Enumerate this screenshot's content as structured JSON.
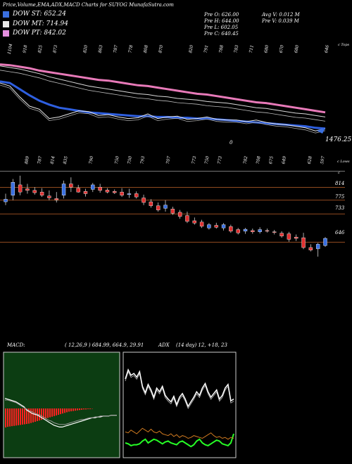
{
  "header": {
    "title": "Price,Volume,EMA,ADX,MACD Charts for SUYOG MunafaSutra.com",
    "dow_items": [
      {
        "label": "DOW ST: 652.24",
        "color": "#3a6fe0"
      },
      {
        "label": "DOW MT: 714.94",
        "color": "#e8e8e8"
      },
      {
        "label": "DOW PT: 842.02",
        "color": "#e58fe0"
      }
    ],
    "stats_col1": [
      "Pre   O: 626.00",
      "Pre   H: 644.00",
      "Pre   L: 602.05",
      "Pre   C: 640.45"
    ],
    "stats_col2": [
      "Avg V: 0.012  M",
      "Pre    V: 0.039  M"
    ]
  },
  "colors": {
    "ema_pt": "#e87ab9",
    "ema_st": "#2e5fe0",
    "up_candle": "#3a6fe0",
    "down_candle": "#e03030",
    "grid": "#c0622a",
    "macd_bars": "#ff2020",
    "macd_bg": "#0c3d12",
    "adx_plus": "#26ff26",
    "adx_minus": "#d07a20"
  },
  "chart_data": [
    {
      "type": "line",
      "name": "EMA panel",
      "top_labels": [
        "1104",
        "918",
        "825",
        "873",
        "",
        "820",
        "863",
        "787",
        "778",
        "808",
        "870",
        "",
        "820",
        "791",
        "788",
        "783",
        "711",
        "680",
        "670",
        "680",
        "",
        "646"
      ],
      "bottom_labels": [
        "889",
        "787",
        "814",
        "835",
        "",
        "790",
        "",
        "750",
        "750",
        "793",
        "",
        "707",
        "",
        "773",
        "750",
        "773",
        "",
        "782",
        "708",
        "675",
        "649",
        "",
        "628",
        "597"
      ],
      "right_label": "c Tops",
      "right_label_bottom": "c Lows",
      "price_label": "1476.25",
      "zero_label": "0",
      "series": [
        {
          "name": "DOW PT",
          "values": [
            94,
            93,
            91,
            89,
            86,
            84,
            82,
            80,
            78,
            76,
            74,
            73,
            71,
            69,
            67,
            66,
            64,
            62,
            60,
            58,
            56,
            55,
            53,
            51,
            49,
            47,
            45,
            44,
            42,
            40,
            38,
            36,
            34,
            32
          ]
        },
        {
          "name": "DOW MT",
          "values": [
            92,
            90,
            88,
            85,
            82,
            78,
            75,
            72,
            69,
            66,
            64,
            62,
            60,
            58,
            56,
            55,
            53,
            52,
            50,
            49,
            48,
            46,
            45,
            44,
            42,
            40,
            38,
            37,
            35,
            33,
            31,
            30,
            28,
            26
          ]
        },
        {
          "name": "DOW ST",
          "values": [
            72,
            70,
            62,
            54,
            47,
            42,
            38,
            36,
            34,
            32,
            31,
            30,
            29,
            28,
            27,
            27,
            26,
            26,
            25,
            25,
            24,
            24,
            23,
            22,
            21,
            20,
            19,
            18,
            17,
            16,
            15,
            14,
            12,
            11
          ]
        },
        {
          "name": "Price",
          "values": [
            70,
            66,
            52,
            40,
            36,
            24,
            26,
            30,
            34,
            33,
            28,
            29,
            26,
            24,
            25,
            30,
            24,
            26,
            27,
            23,
            24,
            26,
            23,
            22,
            22,
            20,
            22,
            19,
            17,
            16,
            14,
            12,
            8,
            11
          ]
        }
      ]
    },
    {
      "type": "bar",
      "name": "Candles",
      "ylabels": [
        "814",
        "775",
        "733",
        "646"
      ],
      "ylabel_top": "c",
      "candles": [
        {
          "o": 770,
          "h": 795,
          "l": 760,
          "c": 778
        },
        {
          "o": 790,
          "h": 840,
          "l": 775,
          "c": 830
        },
        {
          "o": 822,
          "h": 850,
          "l": 790,
          "c": 800
        },
        {
          "o": 810,
          "h": 825,
          "l": 795,
          "c": 805
        },
        {
          "o": 805,
          "h": 815,
          "l": 792,
          "c": 798
        },
        {
          "o": 800,
          "h": 812,
          "l": 785,
          "c": 790
        },
        {
          "o": 788,
          "h": 805,
          "l": 775,
          "c": 782
        },
        {
          "o": 780,
          "h": 800,
          "l": 768,
          "c": 776
        },
        {
          "o": 790,
          "h": 835,
          "l": 780,
          "c": 825
        },
        {
          "o": 825,
          "h": 845,
          "l": 800,
          "c": 815
        },
        {
          "o": 812,
          "h": 822,
          "l": 798,
          "c": 800
        },
        {
          "o": 802,
          "h": 810,
          "l": 786,
          "c": 795
        },
        {
          "o": 808,
          "h": 828,
          "l": 800,
          "c": 822
        },
        {
          "o": 815,
          "h": 825,
          "l": 798,
          "c": 805
        },
        {
          "o": 806,
          "h": 812,
          "l": 796,
          "c": 800
        },
        {
          "o": 802,
          "h": 808,
          "l": 794,
          "c": 798
        },
        {
          "o": 800,
          "h": 812,
          "l": 785,
          "c": 790
        },
        {
          "o": 792,
          "h": 810,
          "l": 782,
          "c": 795
        },
        {
          "o": 795,
          "h": 802,
          "l": 780,
          "c": 785
        },
        {
          "o": 782,
          "h": 792,
          "l": 760,
          "c": 768
        },
        {
          "o": 770,
          "h": 778,
          "l": 752,
          "c": 758
        },
        {
          "o": 758,
          "h": 768,
          "l": 740,
          "c": 745
        },
        {
          "o": 750,
          "h": 775,
          "l": 740,
          "c": 760
        },
        {
          "o": 748,
          "h": 755,
          "l": 730,
          "c": 735
        },
        {
          "o": 738,
          "h": 745,
          "l": 718,
          "c": 725
        },
        {
          "o": 728,
          "h": 740,
          "l": 705,
          "c": 710
        },
        {
          "o": 712,
          "h": 722,
          "l": 700,
          "c": 705
        },
        {
          "o": 708,
          "h": 715,
          "l": 690,
          "c": 695
        },
        {
          "o": 690,
          "h": 705,
          "l": 685,
          "c": 700
        },
        {
          "o": 698,
          "h": 706,
          "l": 688,
          "c": 692
        },
        {
          "o": 690,
          "h": 705,
          "l": 682,
          "c": 700
        },
        {
          "o": 694,
          "h": 700,
          "l": 675,
          "c": 680
        },
        {
          "o": 685,
          "h": 690,
          "l": 670,
          "c": 675
        },
        {
          "o": 680,
          "h": 690,
          "l": 672,
          "c": 686
        },
        {
          "o": 682,
          "h": 688,
          "l": 672,
          "c": 678
        },
        {
          "o": 678,
          "h": 692,
          "l": 673,
          "c": 685
        },
        {
          "o": 682,
          "h": 688,
          "l": 676,
          "c": 680
        },
        {
          "o": 678,
          "h": 684,
          "l": 670,
          "c": 676
        },
        {
          "o": 674,
          "h": 680,
          "l": 660,
          "c": 665
        },
        {
          "o": 672,
          "h": 678,
          "l": 648,
          "c": 655
        },
        {
          "o": 662,
          "h": 670,
          "l": 650,
          "c": 658
        },
        {
          "o": 660,
          "h": 675,
          "l": 625,
          "c": 630
        },
        {
          "o": 630,
          "h": 640,
          "l": 618,
          "c": 622
        },
        {
          "o": 626,
          "h": 644,
          "l": 602,
          "c": 640
        },
        {
          "o": 636,
          "h": 662,
          "l": 632,
          "c": 658
        }
      ]
    },
    {
      "type": "bar",
      "name": "MACD",
      "label": "MACD:",
      "params": "( 12,26,9 ) 684.99,  664.9,  29.91",
      "bars": [
        60,
        58,
        57,
        56,
        55,
        54,
        53,
        52,
        51,
        50,
        49,
        48,
        46,
        44,
        42,
        40,
        38,
        36,
        34,
        32,
        30,
        28,
        26,
        24,
        22,
        20,
        18,
        16,
        14,
        12,
        10,
        9,
        8,
        7,
        6,
        5,
        4,
        3,
        3,
        2,
        2,
        1
      ],
      "macd_line": [
        12,
        11,
        10,
        9,
        8,
        6,
        4,
        2,
        -2,
        -4,
        -6,
        -7,
        -8,
        -10,
        -12,
        -14,
        -16,
        -18,
        -20,
        -21,
        -22,
        -22,
        -21,
        -20,
        -19,
        -18,
        -17,
        -16,
        -15,
        -14,
        -13,
        -12,
        -11,
        -11,
        -10,
        -10,
        -9,
        -9,
        -9,
        -8,
        -8,
        -8
      ],
      "signal_line": [
        10,
        10,
        9,
        8,
        7,
        5,
        3,
        1,
        -1,
        -3,
        -4,
        -6,
        -7,
        -8,
        -10,
        -12,
        -14,
        -15,
        -17,
        -18,
        -19,
        -19,
        -19,
        -18,
        -17,
        -16,
        -15,
        -14,
        -13,
        -13,
        -12,
        -11,
        -11,
        -10,
        -10,
        -9,
        -9,
        -9,
        -9,
        -8,
        -8,
        -8
      ]
    },
    {
      "type": "line",
      "name": "ADX",
      "label": "ADX",
      "params": "(14 day) 12, +18,  23",
      "series": [
        {
          "name": "ADX",
          "values": [
            80,
            90,
            84,
            86,
            82,
            88,
            72,
            65,
            74,
            68,
            60,
            70,
            66,
            72,
            62,
            58,
            55,
            61,
            52,
            60,
            64,
            58,
            50,
            55,
            60,
            66,
            62,
            70,
            75,
            66,
            60,
            64,
            68,
            58,
            62,
            70,
            74,
            56,
            58
          ]
        },
        {
          "name": "+DI",
          "values": [
            10,
            9,
            7,
            8,
            8,
            9,
            12,
            14,
            10,
            12,
            14,
            13,
            11,
            9,
            11,
            12,
            10,
            9,
            8,
            11,
            12,
            10,
            8,
            6,
            8,
            12,
            14,
            10,
            8,
            7,
            9,
            11,
            13,
            12,
            9,
            8,
            7,
            10,
            20
          ]
        },
        {
          "name": "-DI",
          "values": [
            22,
            21,
            24,
            22,
            20,
            23,
            26,
            24,
            22,
            25,
            22,
            21,
            23,
            20,
            19,
            18,
            20,
            17,
            19,
            16,
            18,
            17,
            15,
            16,
            18,
            17,
            16,
            15,
            17,
            19,
            21,
            18,
            16,
            17,
            15,
            16,
            14,
            16,
            15
          ]
        }
      ]
    }
  ]
}
